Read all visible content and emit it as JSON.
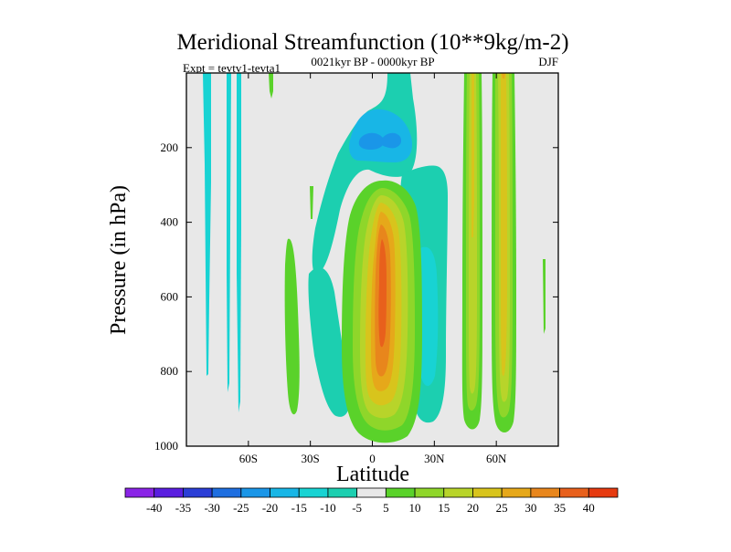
{
  "chart_data": {
    "type": "heatmap",
    "title": "Meridional Streamfunction (10**9kg/m-2)",
    "subtitle_left": "Expt = tevtv1-tevta1",
    "subtitle_center": "0021kyr BP - 0000kyr BP",
    "subtitle_right": "DJF",
    "xlabel": "Latitude",
    "ylabel": "Pressure (in hPa)",
    "xlim": [
      -90,
      90
    ],
    "ylim": [
      0,
      1000
    ],
    "y_inverted": true,
    "x_ticks": [
      {
        "value": -60,
        "label": "60S"
      },
      {
        "value": -30,
        "label": "30S"
      },
      {
        "value": 0,
        "label": "0"
      },
      {
        "value": 30,
        "label": "30N"
      },
      {
        "value": 60,
        "label": "60N"
      }
    ],
    "y_ticks": [
      {
        "value": 200,
        "label": "200"
      },
      {
        "value": 400,
        "label": "400"
      },
      {
        "value": 600,
        "label": "600"
      },
      {
        "value": 800,
        "label": "800"
      },
      {
        "value": 1000,
        "label": "1000"
      }
    ],
    "colorbar": {
      "levels": [
        -40,
        -35,
        -30,
        -25,
        -20,
        -15,
        -10,
        -5,
        5,
        10,
        15,
        20,
        25,
        30,
        35,
        40
      ],
      "labels": [
        "-40",
        "-35",
        "-30",
        "-25",
        "-20",
        "-15",
        "-10",
        "-5",
        "5",
        "10",
        "15",
        "20",
        "25",
        "30",
        "35",
        "40"
      ],
      "colors": [
        "#8a24e6",
        "#5a1ee0",
        "#2b3ed6",
        "#1e6ee0",
        "#1a96e8",
        "#18b6e6",
        "#18d3d3",
        "#1ccfb0",
        "#e8e8e8",
        "#5ad22a",
        "#8fd62a",
        "#b8d42a",
        "#d8c41c",
        "#e6a81a",
        "#e8861c",
        "#e8601c",
        "#e63a10"
      ],
      "background_color": "#e8e8e8"
    },
    "features": [
      {
        "name": "southern-upper-negative-core",
        "lat_range": [
          -13,
          20
        ],
        "p_range": [
          0,
          330
        ],
        "min_value": -27,
        "sign": "negative"
      },
      {
        "name": "tropical-positive-cell",
        "lat_range": [
          -8,
          13
        ],
        "p_range": [
          270,
          985
        ],
        "max_value": 38,
        "sign": "positive"
      },
      {
        "name": "negative-band-near-20N",
        "lat_range": [
          13,
          35
        ],
        "p_range": [
          230,
          910
        ],
        "min_value": -12,
        "sign": "negative"
      },
      {
        "name": "positive-band-near-50N",
        "lat_range": [
          45,
          54
        ],
        "p_range": [
          0,
          950
        ],
        "max_value": 22,
        "sign": "positive"
      },
      {
        "name": "positive-band-near-62N",
        "lat_range": [
          58,
          68
        ],
        "p_range": [
          0,
          960
        ],
        "max_value": 22,
        "sign": "positive"
      },
      {
        "name": "negative-cell-20S",
        "lat_range": [
          -28,
          -12
        ],
        "p_range": [
          300,
          890
        ],
        "min_value": -8,
        "sign": "negative"
      },
      {
        "name": "positive-cell-40S",
        "lat_range": [
          -42,
          -36
        ],
        "p_range": [
          430,
          920
        ],
        "max_value": 8,
        "sign": "positive"
      }
    ]
  }
}
